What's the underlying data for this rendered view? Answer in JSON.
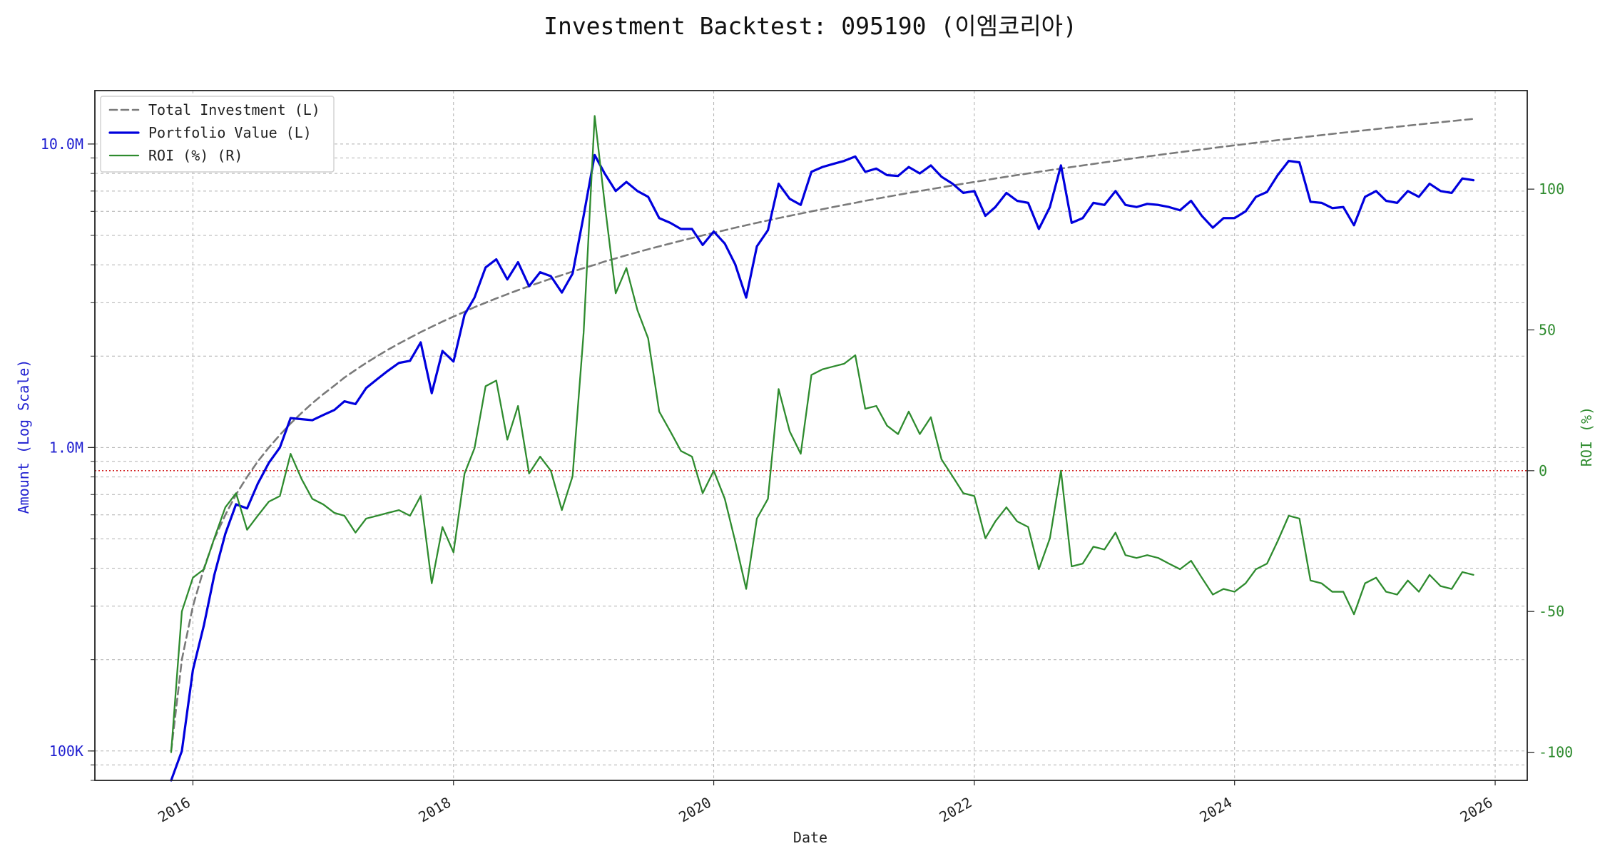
{
  "chart_data": {
    "type": "line",
    "title": "Investment Backtest: 095190 (이엠코리아)",
    "xlabel": "Date",
    "ylabel_left": "Amount (Log Scale)",
    "ylabel_right": "ROI (%)",
    "xlim": [
      "2015-04-01",
      "2026-04-01"
    ],
    "ylim_left": [
      80000,
      15000000
    ],
    "ylim_right": [
      -110,
      135
    ],
    "x_ticks": [
      "2016",
      "2018",
      "2020",
      "2022",
      "2024",
      "2026"
    ],
    "y_ticks_left": [
      {
        "value": 100000,
        "label": "100K"
      },
      {
        "value": 1000000,
        "label": "1.0M"
      },
      {
        "value": 10000000,
        "label": "10.0M"
      }
    ],
    "y_ticks_right": [
      -100,
      -50,
      0,
      50,
      100
    ],
    "roi_zero_line": 0,
    "grid": true,
    "legend_position": "top-left",
    "colors": {
      "total_investment": "#7a7a7a",
      "portfolio_value": "#0000dd",
      "roi": "#2e8b2e",
      "zero_line": "#cc0000",
      "grid": "#b0b0b0",
      "left_axis_text": "#1f1fd0",
      "right_axis_text": "#2e8b2e"
    },
    "dates": [
      "2015-11",
      "2015-12",
      "2016-01",
      "2016-02",
      "2016-03",
      "2016-04",
      "2016-05",
      "2016-06",
      "2016-07",
      "2016-08",
      "2016-09",
      "2016-10",
      "2016-11",
      "2016-12",
      "2017-01",
      "2017-02",
      "2017-03",
      "2017-04",
      "2017-05",
      "2017-06",
      "2017-07",
      "2017-08",
      "2017-09",
      "2017-10",
      "2017-11",
      "2017-12",
      "2018-01",
      "2018-02",
      "2018-03",
      "2018-04",
      "2018-05",
      "2018-06",
      "2018-07",
      "2018-08",
      "2018-09",
      "2018-10",
      "2018-11",
      "2018-12",
      "2019-01",
      "2019-02",
      "2019-03",
      "2019-04",
      "2019-05",
      "2019-06",
      "2019-07",
      "2019-08",
      "2019-09",
      "2019-10",
      "2019-11",
      "2019-12",
      "2020-01",
      "2020-02",
      "2020-03",
      "2020-04",
      "2020-05",
      "2020-06",
      "2020-07",
      "2020-08",
      "2020-09",
      "2020-10",
      "2020-11",
      "2020-12",
      "2021-01",
      "2021-02",
      "2021-03",
      "2021-04",
      "2021-05",
      "2021-06",
      "2021-07",
      "2021-08",
      "2021-09",
      "2021-10",
      "2021-11",
      "2021-12",
      "2022-01",
      "2022-02",
      "2022-03",
      "2022-04",
      "2022-05",
      "2022-06",
      "2022-07",
      "2022-08",
      "2022-09",
      "2022-10",
      "2022-11",
      "2022-12",
      "2023-01",
      "2023-02",
      "2023-03",
      "2023-04",
      "2023-05",
      "2023-06",
      "2023-07",
      "2023-08",
      "2023-09",
      "2023-10",
      "2023-11",
      "2023-12",
      "2024-01",
      "2024-02",
      "2024-03",
      "2024-04",
      "2024-05",
      "2024-06",
      "2024-07",
      "2024-08",
      "2024-09",
      "2024-10",
      "2024-11",
      "2024-12",
      "2025-01",
      "2025-02",
      "2025-03",
      "2025-04",
      "2025-05",
      "2025-06",
      "2025-07",
      "2025-08",
      "2025-09",
      "2025-10",
      "2025-11"
    ],
    "series": [
      {
        "name": "Total Investment (L)",
        "axis": "left",
        "values": [
          100000,
          200000,
          300000,
          400000,
          500000,
          600000,
          700000,
          800000,
          900000,
          1000000,
          1100000,
          1200000,
          1300000,
          1400000,
          1500000,
          1600000,
          1700000,
          1800000,
          1900000,
          2000000,
          2100000,
          2200000,
          2300000,
          2400000,
          2500000,
          2600000,
          2700000,
          2800000,
          2900000,
          3000000,
          3100000,
          3200000,
          3300000,
          3400000,
          3500000,
          3600000,
          3700000,
          3800000,
          3900000,
          4000000,
          4100000,
          4200000,
          4300000,
          4400000,
          4500000,
          4600000,
          4700000,
          4800000,
          4900000,
          5000000,
          5100000,
          5200000,
          5300000,
          5400000,
          5500000,
          5600000,
          5700000,
          5800000,
          5900000,
          6000000,
          6100000,
          6200000,
          6300000,
          6400000,
          6500000,
          6600000,
          6700000,
          6800000,
          6900000,
          7000000,
          7100000,
          7200000,
          7300000,
          7400000,
          7500000,
          7600000,
          7700000,
          7800000,
          7900000,
          8000000,
          8100000,
          8200000,
          8300000,
          8400000,
          8500000,
          8600000,
          8700000,
          8800000,
          8900000,
          9000000,
          9100000,
          9200000,
          9300000,
          9400000,
          9500000,
          9600000,
          9700000,
          9800000,
          9900000,
          10000000,
          10100000,
          10200000,
          10300000,
          10400000,
          10500000,
          10600000,
          10700000,
          10800000,
          10900000,
          11000000,
          11100000,
          11200000,
          11300000,
          11400000,
          11500000,
          11600000,
          11700000,
          11800000,
          11900000,
          12000000,
          12100000
        ]
      },
      {
        "name": "Portfolio Value (L)",
        "axis": "left",
        "values": [
          50000,
          100000,
          185000,
          260000,
          380000,
          520000,
          650000,
          630000,
          760000,
          890000,
          1000000,
          1250000,
          1240000,
          1230000,
          1280000,
          1330000,
          1420000,
          1390000,
          1570000,
          1680000,
          1790000,
          1900000,
          1930000,
          2220000,
          1510000,
          2080000,
          1920000,
          2740000,
          3120000,
          3920000,
          4170000,
          3580000,
          4080000,
          3400000,
          3780000,
          3670000,
          3240000,
          3740000,
          5800000,
          9200000,
          8000000,
          7000000,
          7500000,
          7000000,
          6700000,
          5700000,
          5500000,
          5250000,
          5250000,
          4650000,
          5150000,
          4700000,
          4020000,
          3120000,
          4600000,
          5200000,
          7400000,
          6600000,
          6300000,
          8100000,
          8400000,
          8600000,
          8800000,
          9100000,
          8100000,
          8300000,
          7900000,
          7850000,
          8400000,
          8000000,
          8500000,
          7800000,
          7400000,
          6900000,
          7000000,
          5800000,
          6200000,
          6900000,
          6500000,
          6400000,
          5250000,
          6200000,
          8500000,
          5500000,
          5700000,
          6400000,
          6300000,
          7000000,
          6300000,
          6200000,
          6350000,
          6300000,
          6200000,
          6050000,
          6500000,
          5800000,
          5300000,
          5700000,
          5700000,
          6000000,
          6700000,
          6950000,
          7900000,
          8800000,
          8700000,
          6450000,
          6400000,
          6150000,
          6200000,
          5400000,
          6700000,
          7000000,
          6500000,
          6400000,
          7000000,
          6700000,
          7400000,
          7000000,
          6900000,
          7700000,
          7600000
        ]
      },
      {
        "name": "ROI (%) (R)",
        "axis": "right",
        "values": [
          -100,
          -50,
          -38,
          -35,
          -24,
          -13,
          -8,
          -21,
          -16,
          -11,
          -9,
          6,
          -3,
          -10,
          -12,
          -15,
          -16,
          -22,
          -17,
          -16,
          -15,
          -14,
          -16,
          -9,
          -40,
          -20,
          -29,
          -1,
          8,
          30,
          32,
          11,
          23,
          -1,
          5,
          0,
          -14,
          -2,
          49,
          126,
          95,
          63,
          72,
          57,
          47,
          21,
          14,
          7,
          5,
          -8,
          0,
          -10,
          -25,
          -42,
          -17,
          -10,
          29,
          14,
          6,
          34,
          36,
          37,
          38,
          41,
          22,
          23,
          16,
          13,
          21,
          13,
          19,
          4,
          -2,
          -8,
          -9,
          -24,
          -18,
          -13,
          -18,
          -20,
          -35,
          -24,
          0,
          -34,
          -33,
          -27,
          -28,
          -22,
          -30,
          -31,
          -30,
          -31,
          -33,
          -35,
          -32,
          -38,
          -44,
          -42,
          -43,
          -40,
          -35,
          -33,
          -25,
          -16,
          -17,
          -39,
          -40,
          -43,
          -43,
          -51,
          -40,
          -38,
          -43,
          -44,
          -39,
          -43,
          -37,
          -41,
          -42,
          -36,
          -37
        ]
      }
    ]
  }
}
